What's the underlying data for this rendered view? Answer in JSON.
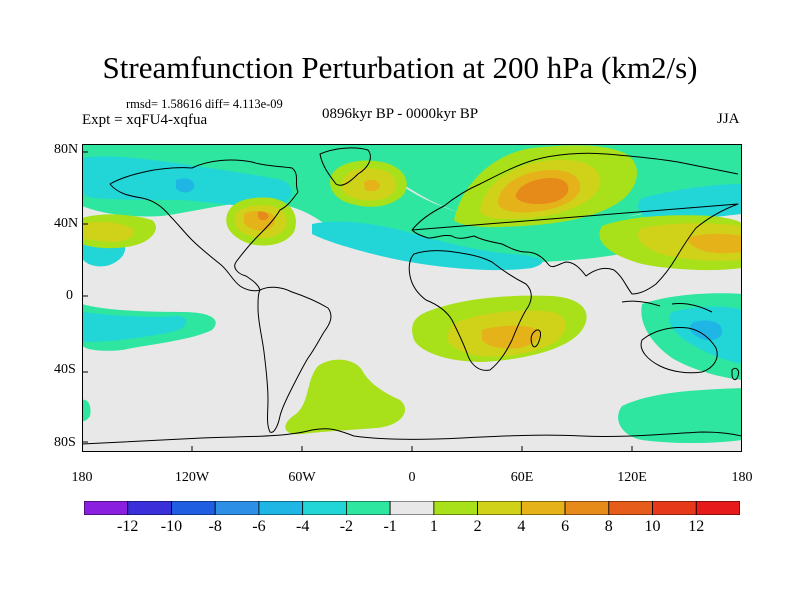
{
  "title": "Streamfunction Perturbation at 200 hPa (km2/s)",
  "stats": "rmsd= 1.58616 diff= 4.113e-09",
  "experiment": "Expt = xqFU4-xqfua",
  "period": "0896kyr BP - 0000kyr BP",
  "season": "JJA",
  "lat_ticks": [
    "80N",
    "40N",
    "0",
    "40S",
    "80S"
  ],
  "lon_ticks": [
    "180",
    "120W",
    "60W",
    "0",
    "60E",
    "120E",
    "180"
  ],
  "colorbar": {
    "labels": [
      "-12",
      "-10",
      "-8",
      "-6",
      "-4",
      "-2",
      "-1",
      "1",
      "2",
      "4",
      "6",
      "8",
      "10",
      "12"
    ],
    "colors": [
      "#8b1fe0",
      "#3a2fd8",
      "#1f5ee0",
      "#2e8fe6",
      "#1fb6e6",
      "#22d6d8",
      "#2ee6a0",
      "#e8e8e8",
      "#a8e01a",
      "#d0d21a",
      "#e6b21a",
      "#e68a1a",
      "#e65c1a",
      "#e6391a",
      "#e61a1a"
    ]
  },
  "colors": {
    "background": "#e8e8e8",
    "coastline": "#000000"
  }
}
